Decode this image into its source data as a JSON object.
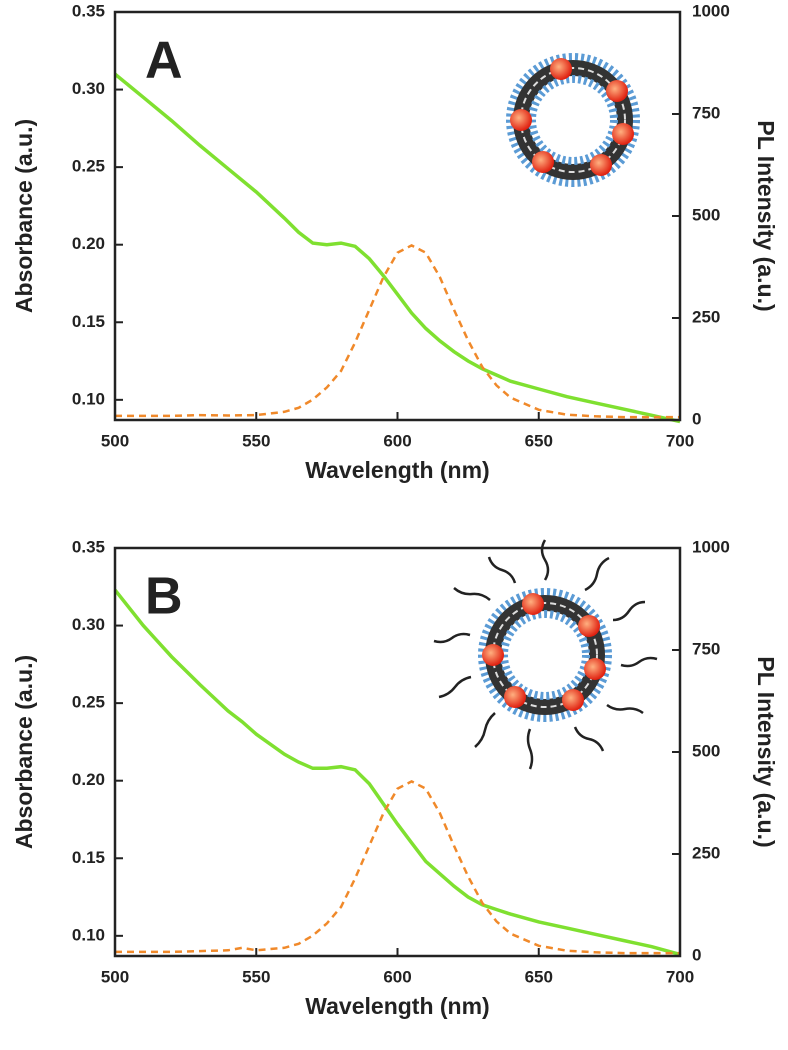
{
  "chart_data": [
    {
      "type": "line",
      "panel_label": "A",
      "x_label": "Wavelength (nm)",
      "y_label": "Absorbance (a.u.)",
      "y2_label": "PL Intensity (a.u.)",
      "x": [
        500,
        510,
        520,
        530,
        540,
        550,
        560,
        565,
        570,
        575,
        580,
        585,
        590,
        595,
        600,
        605,
        610,
        615,
        620,
        625,
        630,
        635,
        640,
        650,
        660,
        670,
        680,
        690,
        700
      ],
      "series": [
        {
          "color": "#7fe030",
          "values": [
            0.31,
            0.295,
            0.28,
            0.264,
            0.249,
            0.234,
            0.217,
            0.208,
            0.201,
            0.2,
            0.201,
            0.199,
            0.191,
            0.18,
            0.168,
            0.156,
            0.146,
            0.138,
            0.131,
            0.125,
            0.12,
            0.116,
            0.112,
            0.107,
            0.102,
            0.098,
            0.094,
            0.09,
            0.086
          ]
        },
        {
          "color": "#f0892a",
          "dashed": true,
          "axis": "y2",
          "values": [
            10,
            10,
            10,
            12,
            11,
            12,
            20,
            30,
            50,
            80,
            120,
            190,
            270,
            350,
            410,
            428,
            410,
            350,
            270,
            195,
            130,
            85,
            55,
            25,
            13,
            9,
            7,
            7,
            7
          ]
        }
      ],
      "xlim": [
        500,
        700
      ],
      "xticks": [
        500,
        550,
        600,
        650,
        700
      ],
      "ylim": [
        0.087,
        0.35
      ],
      "yticks": [
        {
          "value": 0.1,
          "label": "0.10"
        },
        0.15,
        {
          "value": 0.2,
          "label": "0.20"
        },
        0.25,
        {
          "value": 0.3,
          "label": "0.30"
        },
        0.35
      ],
      "y2lim": [
        0,
        1000
      ],
      "y2ticks": [
        0,
        250,
        500,
        750,
        1000
      ]
    },
    {
      "type": "line",
      "panel_label": "B",
      "x_label": "Wavelength (nm)",
      "y_label": "Absorbance (a.u.)",
      "y2_label": "PL Intensity (a.u.)",
      "x": [
        500,
        510,
        520,
        530,
        540,
        545,
        550,
        560,
        565,
        570,
        575,
        580,
        585,
        590,
        595,
        600,
        605,
        610,
        615,
        620,
        625,
        630,
        635,
        640,
        650,
        660,
        670,
        680,
        690,
        700
      ],
      "series": [
        {
          "color": "#7fe030",
          "values": [
            0.323,
            0.3,
            0.28,
            0.262,
            0.245,
            0.238,
            0.23,
            0.217,
            0.212,
            0.208,
            0.208,
            0.209,
            0.207,
            0.198,
            0.185,
            0.172,
            0.16,
            0.148,
            0.14,
            0.132,
            0.125,
            0.12,
            0.117,
            0.114,
            0.109,
            0.105,
            0.101,
            0.097,
            0.093,
            0.088
          ]
        },
        {
          "color": "#f0892a",
          "dashed": true,
          "axis": "y2",
          "values": [
            10,
            10,
            10,
            12,
            14,
            20,
            14,
            20,
            30,
            50,
            80,
            120,
            190,
            270,
            350,
            410,
            428,
            410,
            350,
            270,
            195,
            130,
            85,
            55,
            25,
            13,
            9,
            7,
            7,
            7
          ]
        }
      ],
      "xlim": [
        500,
        700
      ],
      "xticks": [
        500,
        550,
        600,
        650,
        700
      ],
      "ylim": [
        0.087,
        0.35
      ],
      "yticks": [
        {
          "value": 0.1,
          "label": "0.10"
        },
        0.15,
        {
          "value": 0.2,
          "label": "0.20"
        },
        0.25,
        {
          "value": 0.3,
          "label": "0.30"
        },
        0.35
      ],
      "y2lim": [
        0,
        1000
      ],
      "y2ticks": [
        0,
        250,
        500,
        750,
        1000
      ]
    }
  ]
}
